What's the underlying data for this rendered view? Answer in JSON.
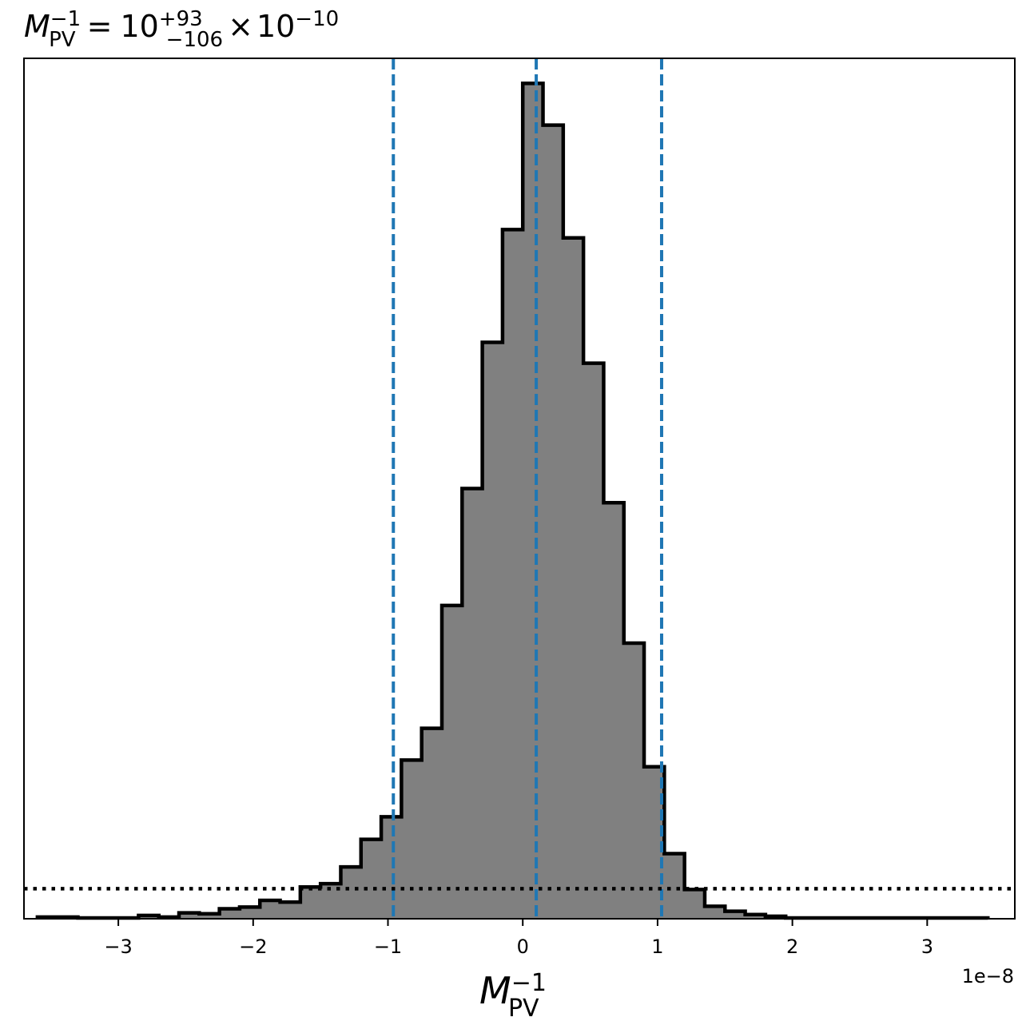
{
  "chart_data": {
    "type": "histogram",
    "title": {
      "symbol": "M",
      "sub": "PV",
      "sup": "−1",
      "equals": "=",
      "value": "10",
      "upper": "+93",
      "lower": "−106",
      "times": "×",
      "scale_base": "10",
      "scale_exp": "−10"
    },
    "xlabel": {
      "symbol": "M",
      "sub": "PV",
      "sup": "−1"
    },
    "x_offset_label": "1e−8",
    "xlim": [
      -3.7,
      3.65
    ],
    "ylim": [
      0,
      1.03
    ],
    "xticks": [
      {
        "value": -3,
        "label": "−3"
      },
      {
        "value": -2,
        "label": "−2"
      },
      {
        "value": -1,
        "label": "−1"
      },
      {
        "value": 0,
        "label": "0"
      },
      {
        "value": 1,
        "label": "1"
      },
      {
        "value": 2,
        "label": "2"
      },
      {
        "value": 3,
        "label": "3"
      }
    ],
    "bin_edges": [
      -3.6,
      -3.45,
      -3.3,
      -3.15,
      -3.0,
      -2.85,
      -2.7,
      -2.55,
      -2.4,
      -2.25,
      -2.1,
      -1.95,
      -1.8,
      -1.65,
      -1.5,
      -1.35,
      -1.2,
      -1.05,
      -0.9,
      -0.75,
      -0.6,
      -0.45,
      -0.3,
      -0.15,
      0.0,
      0.15,
      0.3,
      0.45,
      0.6,
      0.75,
      0.9,
      1.05,
      1.2,
      1.35,
      1.5,
      1.65,
      1.8,
      1.95,
      2.1,
      2.25,
      2.4,
      2.55,
      2.7,
      2.85,
      3.0,
      3.15,
      3.3,
      3.45
    ],
    "counts": [
      0.002,
      0.002,
      0.001,
      0.001,
      0.001,
      0.004,
      0.002,
      0.007,
      0.006,
      0.012,
      0.014,
      0.022,
      0.02,
      0.038,
      0.042,
      0.062,
      0.095,
      0.122,
      0.19,
      0.228,
      0.375,
      0.515,
      0.69,
      0.825,
      1.0,
      0.95,
      0.815,
      0.665,
      0.498,
      0.33,
      0.182,
      0.078,
      0.035,
      0.015,
      0.009,
      0.005,
      0.003,
      0.001,
      0.001,
      0.001,
      0.001,
      0.001,
      0.001,
      0.001,
      0.001,
      0.001,
      0.001
    ],
    "vlines": [
      -0.96,
      0.1,
      1.03
    ],
    "hline": 0.036,
    "colors": {
      "bar_fill": "#808080",
      "bar_edge": "#000000",
      "vline": "#1f77b4",
      "hline": "#000000"
    }
  }
}
